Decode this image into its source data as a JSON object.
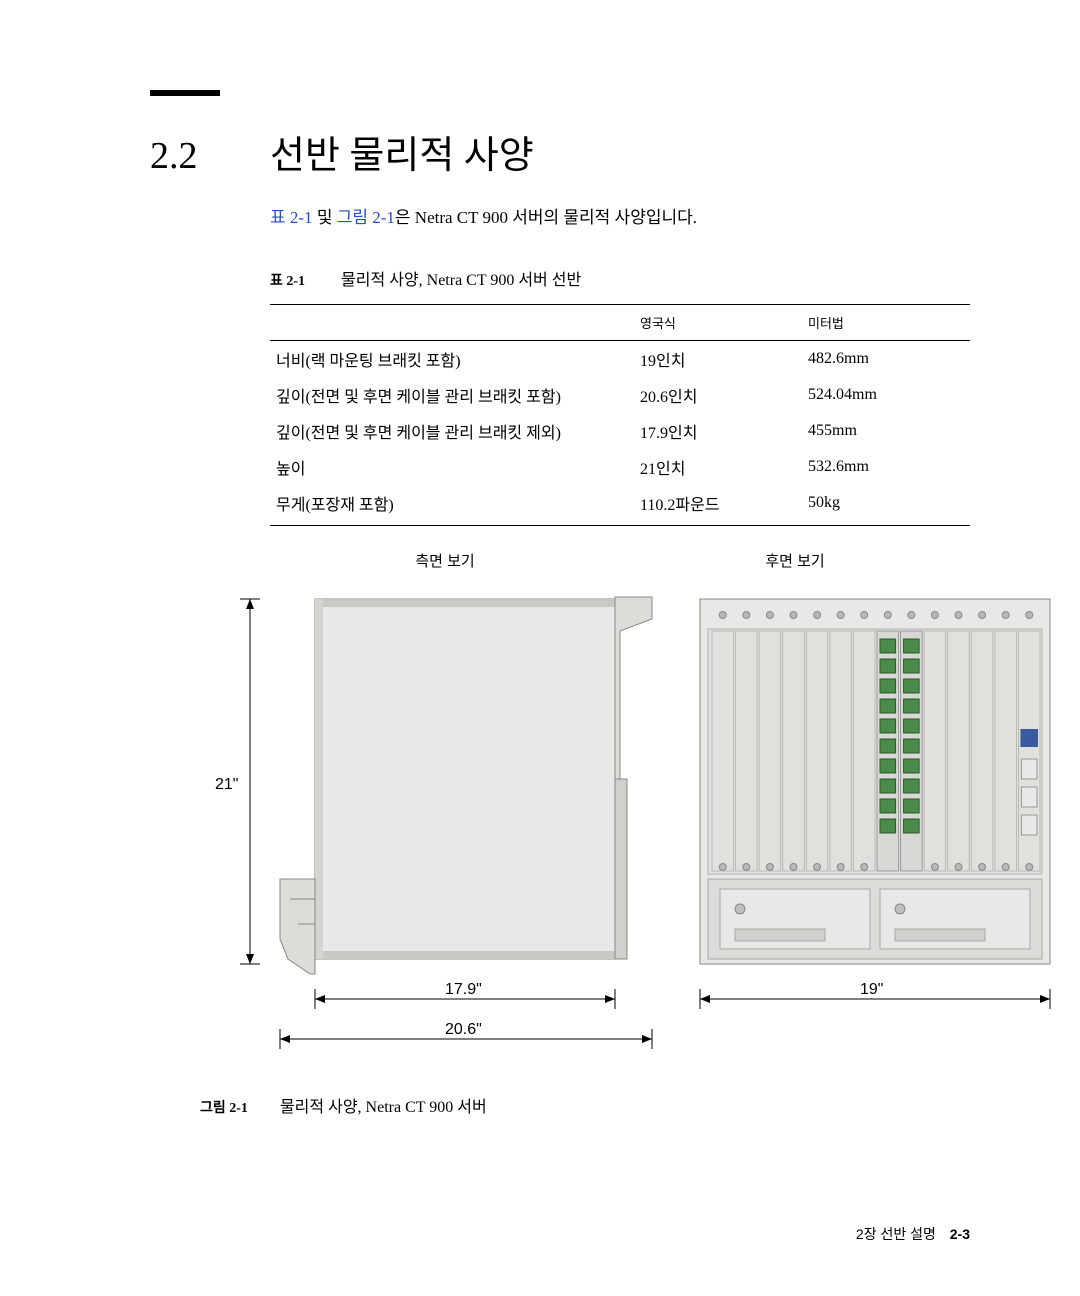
{
  "section": {
    "number": "2.2",
    "title": "선반 물리적 사양"
  },
  "intro": {
    "link1": "표 2-1",
    "mid1": " 및 ",
    "link2": "그림 2-1",
    "rest": "은 Netra CT 900 서버의 물리적 사양입니다."
  },
  "table": {
    "caption_label": "표 2-1",
    "caption_text": "물리적 사양, Netra CT 900 서버 선반",
    "headers": [
      "",
      "영국식",
      "미터법"
    ],
    "rows": [
      [
        "너비(랙 마운팅 브래킷 포함)",
        "19인치",
        "482.6mm"
      ],
      [
        "깊이(전면 및 후면 케이블 관리 브래킷 포함)",
        "20.6인치",
        "524.04mm"
      ],
      [
        "깊이(전면 및 후면 케이블 관리 브래킷 제외)",
        "17.9인치",
        "455mm"
      ],
      [
        "높이",
        "21인치",
        "532.6mm"
      ],
      [
        "무게(포장재 포함)",
        "110.2파운드",
        "50kg"
      ]
    ]
  },
  "views": {
    "side": "측면 보기",
    "rear": "후면 보기"
  },
  "figure": {
    "caption_label": "그림 2-1",
    "caption_text": "물리적 사양, Netra CT 900 서버",
    "dims": {
      "height": "21\"",
      "depth_inner": "17.9\"",
      "depth_outer": "20.6\"",
      "width": "19\""
    },
    "colors": {
      "body_light": "#e8e8e6",
      "body_mid": "#dcdcd8",
      "body_dark": "#c8c8c4",
      "stroke": "#888884",
      "port_green": "#4a8a4a",
      "port_blue": "#3a5aa0"
    }
  },
  "footer": {
    "chapter": "2장   선반 설명",
    "page": "2-3"
  }
}
